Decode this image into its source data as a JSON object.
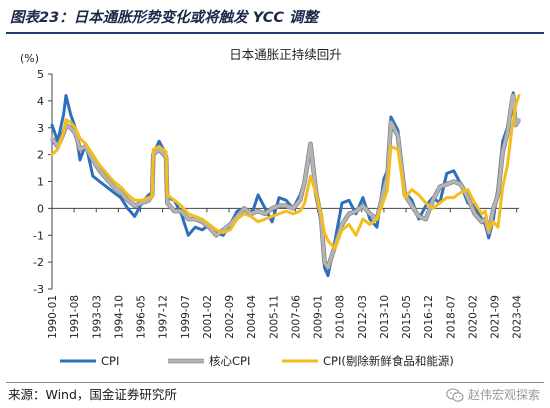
{
  "figure": {
    "title": "图表23：日本通胀形势变化或将触发 YCC 调整",
    "source": "来源：Wind，国金证券研究所",
    "watermark": "赵伟宏观探索"
  },
  "chart_data": {
    "type": "line",
    "title": "日本通胀正持续回升",
    "ylabel": "(%)",
    "xlabel": "",
    "ylim": [
      -3,
      5
    ],
    "yticks": [
      -3,
      -2,
      -1,
      0,
      1,
      2,
      3,
      4,
      5
    ],
    "xticks": [
      "1990-01",
      "1991-08",
      "1993-03",
      "1994-10",
      "1996-05",
      "1997-12",
      "1999-07",
      "2001-02",
      "2002-09",
      "2004-04",
      "2005-11",
      "2007-06",
      "2009-01",
      "2010-08",
      "2012-03",
      "2013-10",
      "2015-05",
      "2016-12",
      "2018-07",
      "2020-02",
      "2021-09",
      "2023-04"
    ],
    "x_range": [
      "1990-01",
      "2023-06"
    ],
    "grid": false,
    "legend_position": "bottom",
    "series": [
      {
        "name": "CPI",
        "color": "#2c6fbf",
        "points": [
          [
            "1990-01",
            3.1
          ],
          [
            "1990-06",
            2.5
          ],
          [
            "1990-11",
            3.5
          ],
          [
            "1991-01",
            4.2
          ],
          [
            "1991-05",
            3.5
          ],
          [
            "1991-09",
            3.0
          ],
          [
            "1992-01",
            1.8
          ],
          [
            "1992-06",
            2.4
          ],
          [
            "1992-12",
            1.2
          ],
          [
            "1993-06",
            1.0
          ],
          [
            "1993-12",
            0.8
          ],
          [
            "1994-06",
            0.6
          ],
          [
            "1994-12",
            0.4
          ],
          [
            "1995-06",
            0.0
          ],
          [
            "1995-12",
            -0.3
          ],
          [
            "1996-06",
            0.2
          ],
          [
            "1996-12",
            0.5
          ],
          [
            "1997-03",
            0.6
          ],
          [
            "1997-04",
            2.0
          ],
          [
            "1997-09",
            2.5
          ],
          [
            "1998-03",
            2.0
          ],
          [
            "1998-04",
            0.4
          ],
          [
            "1998-10",
            0.3
          ],
          [
            "1999-04",
            -0.2
          ],
          [
            "1999-10",
            -1.0
          ],
          [
            "2000-04",
            -0.7
          ],
          [
            "2000-10",
            -0.8
          ],
          [
            "2001-04",
            -0.6
          ],
          [
            "2001-10",
            -0.9
          ],
          [
            "2002-04",
            -1.0
          ],
          [
            "2002-10",
            -0.6
          ],
          [
            "2003-04",
            -0.1
          ],
          [
            "2003-10",
            0.0
          ],
          [
            "2004-04",
            -0.3
          ],
          [
            "2004-10",
            0.5
          ],
          [
            "2005-04",
            0.0
          ],
          [
            "2005-10",
            -0.5
          ],
          [
            "2006-04",
            0.4
          ],
          [
            "2006-10",
            0.3
          ],
          [
            "2007-04",
            0.0
          ],
          [
            "2007-10",
            0.5
          ],
          [
            "2008-02",
            1.0
          ],
          [
            "2008-07",
            2.3
          ],
          [
            "2008-12",
            0.4
          ],
          [
            "2009-04",
            -0.5
          ],
          [
            "2009-07",
            -2.2
          ],
          [
            "2009-10",
            -2.5
          ],
          [
            "2010-04",
            -1.2
          ],
          [
            "2010-10",
            0.2
          ],
          [
            "2011-04",
            0.3
          ],
          [
            "2011-10",
            -0.2
          ],
          [
            "2012-04",
            0.4
          ],
          [
            "2012-10",
            -0.4
          ],
          [
            "2013-04",
            -0.7
          ],
          [
            "2013-10",
            1.1
          ],
          [
            "2014-01",
            1.4
          ],
          [
            "2014-04",
            3.4
          ],
          [
            "2014-10",
            2.9
          ],
          [
            "2015-04",
            0.6
          ],
          [
            "2015-10",
            0.3
          ],
          [
            "2016-04",
            -0.4
          ],
          [
            "2016-10",
            0.1
          ],
          [
            "2017-04",
            0.4
          ],
          [
            "2017-10",
            0.2
          ],
          [
            "2018-04",
            1.3
          ],
          [
            "2018-10",
            1.4
          ],
          [
            "2019-04",
            0.9
          ],
          [
            "2019-10",
            0.2
          ],
          [
            "2020-04",
            0.1
          ],
          [
            "2020-10",
            -0.4
          ],
          [
            "2021-01",
            -0.6
          ],
          [
            "2021-04",
            -1.1
          ],
          [
            "2021-08",
            -0.4
          ],
          [
            "2021-12",
            0.8
          ],
          [
            "2022-04",
            2.5
          ],
          [
            "2022-08",
            3.0
          ],
          [
            "2022-12",
            4.0
          ],
          [
            "2023-01",
            4.3
          ],
          [
            "2023-03",
            3.2
          ],
          [
            "2023-06",
            3.3
          ]
        ]
      },
      {
        "name": "核心CPI",
        "color": "#b4b4b4",
        "points": [
          [
            "1990-01",
            2.6
          ],
          [
            "1990-06",
            2.3
          ],
          [
            "1990-11",
            2.8
          ],
          [
            "1991-01",
            3.1
          ],
          [
            "1991-05",
            3.0
          ],
          [
            "1991-09",
            2.8
          ],
          [
            "1992-01",
            2.2
          ],
          [
            "1992-06",
            2.3
          ],
          [
            "1992-12",
            1.8
          ],
          [
            "1993-06",
            1.4
          ],
          [
            "1993-12",
            1.1
          ],
          [
            "1994-06",
            0.8
          ],
          [
            "1994-12",
            0.6
          ],
          [
            "1995-06",
            0.3
          ],
          [
            "1995-12",
            0.1
          ],
          [
            "1996-06",
            0.2
          ],
          [
            "1996-12",
            0.3
          ],
          [
            "1997-03",
            0.5
          ],
          [
            "1997-04",
            2.0
          ],
          [
            "1997-09",
            2.2
          ],
          [
            "1998-03",
            1.9
          ],
          [
            "1998-04",
            0.2
          ],
          [
            "1998-10",
            -0.1
          ],
          [
            "1999-04",
            -0.1
          ],
          [
            "1999-10",
            -0.4
          ],
          [
            "2000-04",
            -0.4
          ],
          [
            "2000-10",
            -0.5
          ],
          [
            "2001-04",
            -0.7
          ],
          [
            "2001-10",
            -1.0
          ],
          [
            "2002-04",
            -0.8
          ],
          [
            "2002-10",
            -0.6
          ],
          [
            "2003-04",
            -0.3
          ],
          [
            "2003-10",
            0.0
          ],
          [
            "2004-04",
            -0.2
          ],
          [
            "2004-10",
            -0.1
          ],
          [
            "2005-04",
            -0.2
          ],
          [
            "2005-10",
            0.0
          ],
          [
            "2006-04",
            0.1
          ],
          [
            "2006-10",
            0.1
          ],
          [
            "2007-04",
            0.0
          ],
          [
            "2007-10",
            0.3
          ],
          [
            "2008-02",
            1.0
          ],
          [
            "2008-07",
            2.4
          ],
          [
            "2008-12",
            0.5
          ],
          [
            "2009-04",
            -0.3
          ],
          [
            "2009-07",
            -2.0
          ],
          [
            "2009-10",
            -2.2
          ],
          [
            "2010-04",
            -1.4
          ],
          [
            "2010-10",
            -0.6
          ],
          [
            "2011-04",
            -0.2
          ],
          [
            "2011-10",
            -0.1
          ],
          [
            "2012-04",
            0.1
          ],
          [
            "2012-10",
            -0.2
          ],
          [
            "2013-04",
            -0.4
          ],
          [
            "2013-10",
            0.7
          ],
          [
            "2014-01",
            1.2
          ],
          [
            "2014-04",
            3.2
          ],
          [
            "2014-10",
            2.7
          ],
          [
            "2015-04",
            0.5
          ],
          [
            "2015-10",
            0.1
          ],
          [
            "2016-04",
            -0.3
          ],
          [
            "2016-10",
            -0.4
          ],
          [
            "2017-04",
            0.3
          ],
          [
            "2017-10",
            0.8
          ],
          [
            "2018-04",
            0.9
          ],
          [
            "2018-10",
            1.0
          ],
          [
            "2019-04",
            0.9
          ],
          [
            "2019-10",
            0.4
          ],
          [
            "2020-04",
            -0.2
          ],
          [
            "2020-10",
            -0.5
          ],
          [
            "2021-01",
            -0.4
          ],
          [
            "2021-04",
            -0.9
          ],
          [
            "2021-08",
            0.0
          ],
          [
            "2021-12",
            0.5
          ],
          [
            "2022-04",
            2.1
          ],
          [
            "2022-08",
            2.8
          ],
          [
            "2022-12",
            4.0
          ],
          [
            "2023-01",
            4.2
          ],
          [
            "2023-03",
            3.1
          ],
          [
            "2023-06",
            3.3
          ]
        ]
      },
      {
        "name": "CPI(剔除新鲜食品和能源)",
        "color": "#f2bd1d",
        "points": [
          [
            "1990-01",
            2.0
          ],
          [
            "1990-06",
            2.2
          ],
          [
            "1990-11",
            2.8
          ],
          [
            "1991-01",
            3.3
          ],
          [
            "1991-05",
            3.2
          ],
          [
            "1991-09",
            3.0
          ],
          [
            "1992-01",
            2.6
          ],
          [
            "1992-06",
            2.4
          ],
          [
            "1992-12",
            2.0
          ],
          [
            "1993-06",
            1.6
          ],
          [
            "1993-12",
            1.3
          ],
          [
            "1994-06",
            1.0
          ],
          [
            "1994-12",
            0.8
          ],
          [
            "1995-06",
            0.5
          ],
          [
            "1995-12",
            0.3
          ],
          [
            "1996-06",
            0.3
          ],
          [
            "1996-12",
            0.4
          ],
          [
            "1997-03",
            0.4
          ],
          [
            "1997-04",
            2.2
          ],
          [
            "1997-09",
            2.3
          ],
          [
            "1998-03",
            2.1
          ],
          [
            "1998-04",
            0.5
          ],
          [
            "1998-10",
            0.3
          ],
          [
            "1999-04",
            0.1
          ],
          [
            "1999-10",
            -0.2
          ],
          [
            "2000-04",
            -0.3
          ],
          [
            "2000-10",
            -0.4
          ],
          [
            "2001-04",
            -0.6
          ],
          [
            "2001-10",
            -0.8
          ],
          [
            "2002-04",
            -0.9
          ],
          [
            "2002-10",
            -0.8
          ],
          [
            "2003-04",
            -0.4
          ],
          [
            "2003-10",
            -0.2
          ],
          [
            "2004-04",
            -0.3
          ],
          [
            "2004-10",
            -0.5
          ],
          [
            "2005-04",
            -0.4
          ],
          [
            "2005-10",
            -0.3
          ],
          [
            "2006-04",
            -0.2
          ],
          [
            "2006-10",
            -0.1
          ],
          [
            "2007-04",
            -0.2
          ],
          [
            "2007-10",
            -0.1
          ],
          [
            "2008-02",
            0.2
          ],
          [
            "2008-07",
            1.2
          ],
          [
            "2008-12",
            0.5
          ],
          [
            "2009-04",
            -0.2
          ],
          [
            "2009-07",
            -0.9
          ],
          [
            "2009-10",
            -1.2
          ],
          [
            "2010-04",
            -1.5
          ],
          [
            "2010-10",
            -0.8
          ],
          [
            "2011-04",
            -0.6
          ],
          [
            "2011-10",
            -1.0
          ],
          [
            "2012-04",
            -0.4
          ],
          [
            "2012-10",
            -0.6
          ],
          [
            "2013-04",
            -0.4
          ],
          [
            "2013-10",
            0.3
          ],
          [
            "2014-01",
            0.7
          ],
          [
            "2014-04",
            2.3
          ],
          [
            "2014-10",
            2.2
          ],
          [
            "2015-04",
            0.4
          ],
          [
            "2015-10",
            0.7
          ],
          [
            "2016-04",
            0.5
          ],
          [
            "2016-10",
            0.2
          ],
          [
            "2017-04",
            0.0
          ],
          [
            "2017-10",
            0.2
          ],
          [
            "2018-04",
            0.4
          ],
          [
            "2018-10",
            0.4
          ],
          [
            "2019-04",
            0.6
          ],
          [
            "2019-10",
            0.7
          ],
          [
            "2020-04",
            0.2
          ],
          [
            "2020-10",
            -0.2
          ],
          [
            "2021-01",
            -0.1
          ],
          [
            "2021-04",
            -0.8
          ],
          [
            "2021-08",
            -0.5
          ],
          [
            "2021-12",
            -0.7
          ],
          [
            "2022-04",
            0.8
          ],
          [
            "2022-08",
            1.6
          ],
          [
            "2022-12",
            3.0
          ],
          [
            "2023-01",
            3.2
          ],
          [
            "2023-03",
            3.8
          ],
          [
            "2023-06",
            4.2
          ]
        ]
      }
    ]
  }
}
